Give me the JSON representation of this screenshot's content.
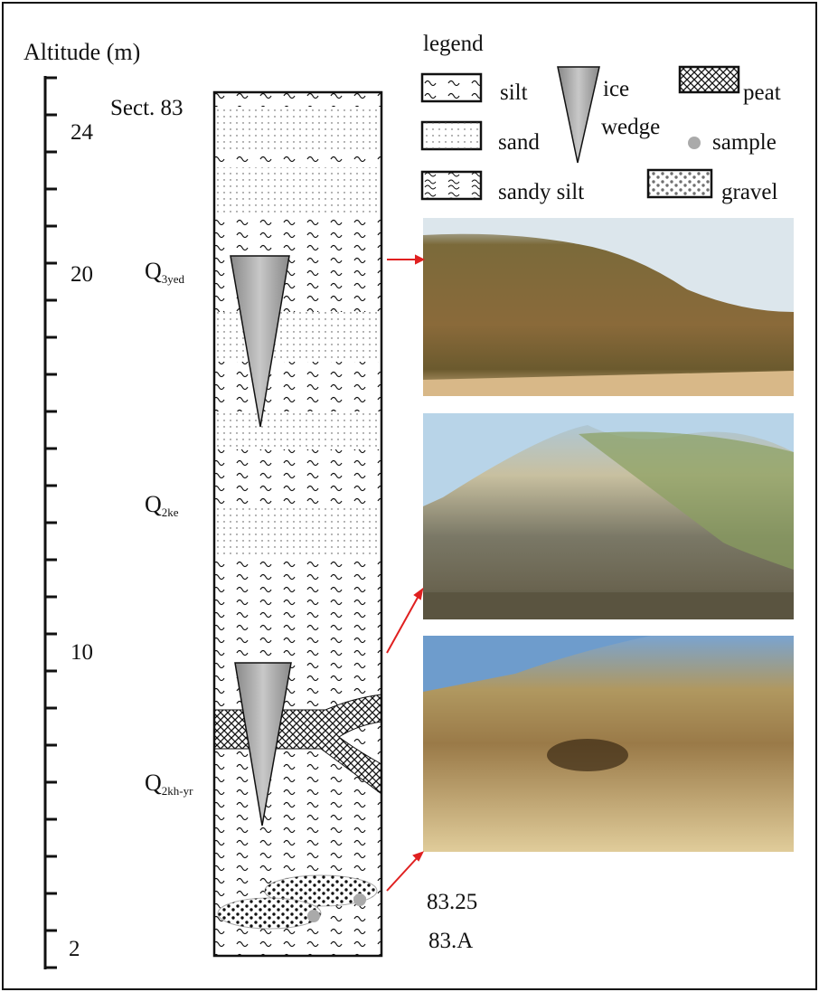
{
  "axis": {
    "title": "Altitude (m)",
    "ticks": [
      "24",
      "20",
      "10",
      "2"
    ]
  },
  "section": "Sect. 83",
  "units": [
    {
      "main": "Q",
      "sub": "3yed"
    },
    {
      "main": "Q",
      "sub": "2ke"
    },
    {
      "main": "Q",
      "sub": "2kh-yr"
    }
  ],
  "legend": {
    "title": "legend",
    "items": [
      {
        "label": "silt"
      },
      {
        "label_lines": [
          "ice",
          "wedge"
        ]
      },
      {
        "label": "peat"
      },
      {
        "label": "sand"
      },
      {
        "label": "sample"
      },
      {
        "label": "sandy silt"
      },
      {
        "label": "gravel"
      }
    ]
  },
  "samples": [
    "83.25",
    "83.A"
  ]
}
